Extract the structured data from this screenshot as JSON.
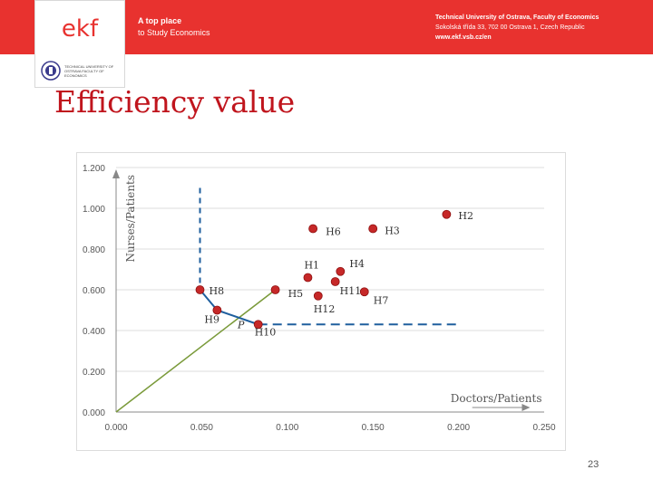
{
  "header": {
    "logo_text": "ekf",
    "tagline_line1": "A top place",
    "tagline_line2": "to Study Economics",
    "university_line1": "Technical University of Ostrava, Faculty of Economics",
    "university_line2": "Sokolská třída 33, 702 00 Ostrava 1, Czech Republic",
    "university_line3": "www.ekf.vsb.cz/en",
    "seal_text": "TECHNICAL UNIVERSITY OF OSTRAVA FACULTY OF ECONOMICS",
    "brand_color": "#e8322f"
  },
  "slide": {
    "title": "Efficiency value",
    "page_number": "23",
    "title_color": "#c0151d"
  },
  "chart_data": {
    "type": "scatter",
    "title": "",
    "xlabel": "Doctors/Patients",
    "ylabel": "Nurses/Patients",
    "xlim": [
      0,
      0.25
    ],
    "ylim": [
      0,
      1.2
    ],
    "x_ticks": [
      "0.000",
      "0.050",
      "0.100",
      "0.150",
      "0.200",
      "0.250"
    ],
    "y_ticks": [
      "0.000",
      "0.200",
      "0.400",
      "0.600",
      "0.800",
      "1.000",
      "1.200"
    ],
    "grid": true,
    "points": [
      {
        "name": "H2",
        "x": 0.193,
        "y": 0.97
      },
      {
        "name": "H3",
        "x": 0.15,
        "y": 0.9
      },
      {
        "name": "H6",
        "x": 0.115,
        "y": 0.9
      },
      {
        "name": "H4",
        "x": 0.131,
        "y": 0.69
      },
      {
        "name": "H1",
        "x": 0.112,
        "y": 0.66
      },
      {
        "name": "H11",
        "x": 0.128,
        "y": 0.64
      },
      {
        "name": "H7",
        "x": 0.145,
        "y": 0.59
      },
      {
        "name": "H5",
        "x": 0.093,
        "y": 0.6
      },
      {
        "name": "H12",
        "x": 0.118,
        "y": 0.57
      },
      {
        "name": "H8",
        "x": 0.049,
        "y": 0.6
      },
      {
        "name": "H9",
        "x": 0.059,
        "y": 0.5
      },
      {
        "name": "H10",
        "x": 0.083,
        "y": 0.43
      }
    ],
    "frontier": [
      [
        0.049,
        0.6
      ],
      [
        0.059,
        0.5
      ],
      [
        0.083,
        0.43
      ]
    ],
    "frontier_ext_vertical": [
      [
        0.049,
        1.1
      ],
      [
        0.049,
        0.6
      ]
    ],
    "frontier_ext_horizontal": [
      [
        0.083,
        0.43
      ],
      [
        0.2,
        0.43
      ]
    ],
    "ray": [
      [
        0.0,
        0.0
      ],
      [
        0.093,
        0.6
      ]
    ],
    "projection_label": {
      "name": "P",
      "x": 0.071,
      "y": 0.465
    },
    "colors": {
      "point": "#c62828",
      "frontier": "#1f5f9e",
      "ray": "#7a9a3a",
      "grid": "#dddddd",
      "axis": "#888888"
    }
  }
}
